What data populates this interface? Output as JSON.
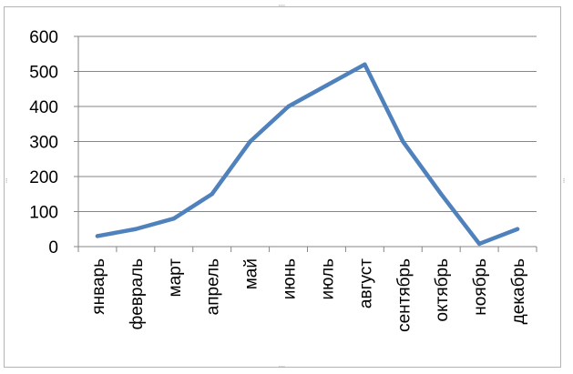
{
  "chart_data": {
    "type": "line",
    "categories": [
      "январь",
      "февраль",
      "март",
      "апрель",
      "май",
      "июнь",
      "июль",
      "август",
      "сентябрь",
      "октябрь",
      "ноябрь",
      "декабрь"
    ],
    "series": [
      {
        "values": [
          30,
          50,
          80,
          150,
          300,
          400,
          460,
          520,
          300,
          150,
          8,
          50
        ]
      }
    ],
    "ylim": [
      0,
      600
    ],
    "yticks": [
      0,
      100,
      200,
      300,
      400,
      500,
      600
    ],
    "grid": true,
    "legend": "none",
    "line_color": "#4f81bd"
  }
}
